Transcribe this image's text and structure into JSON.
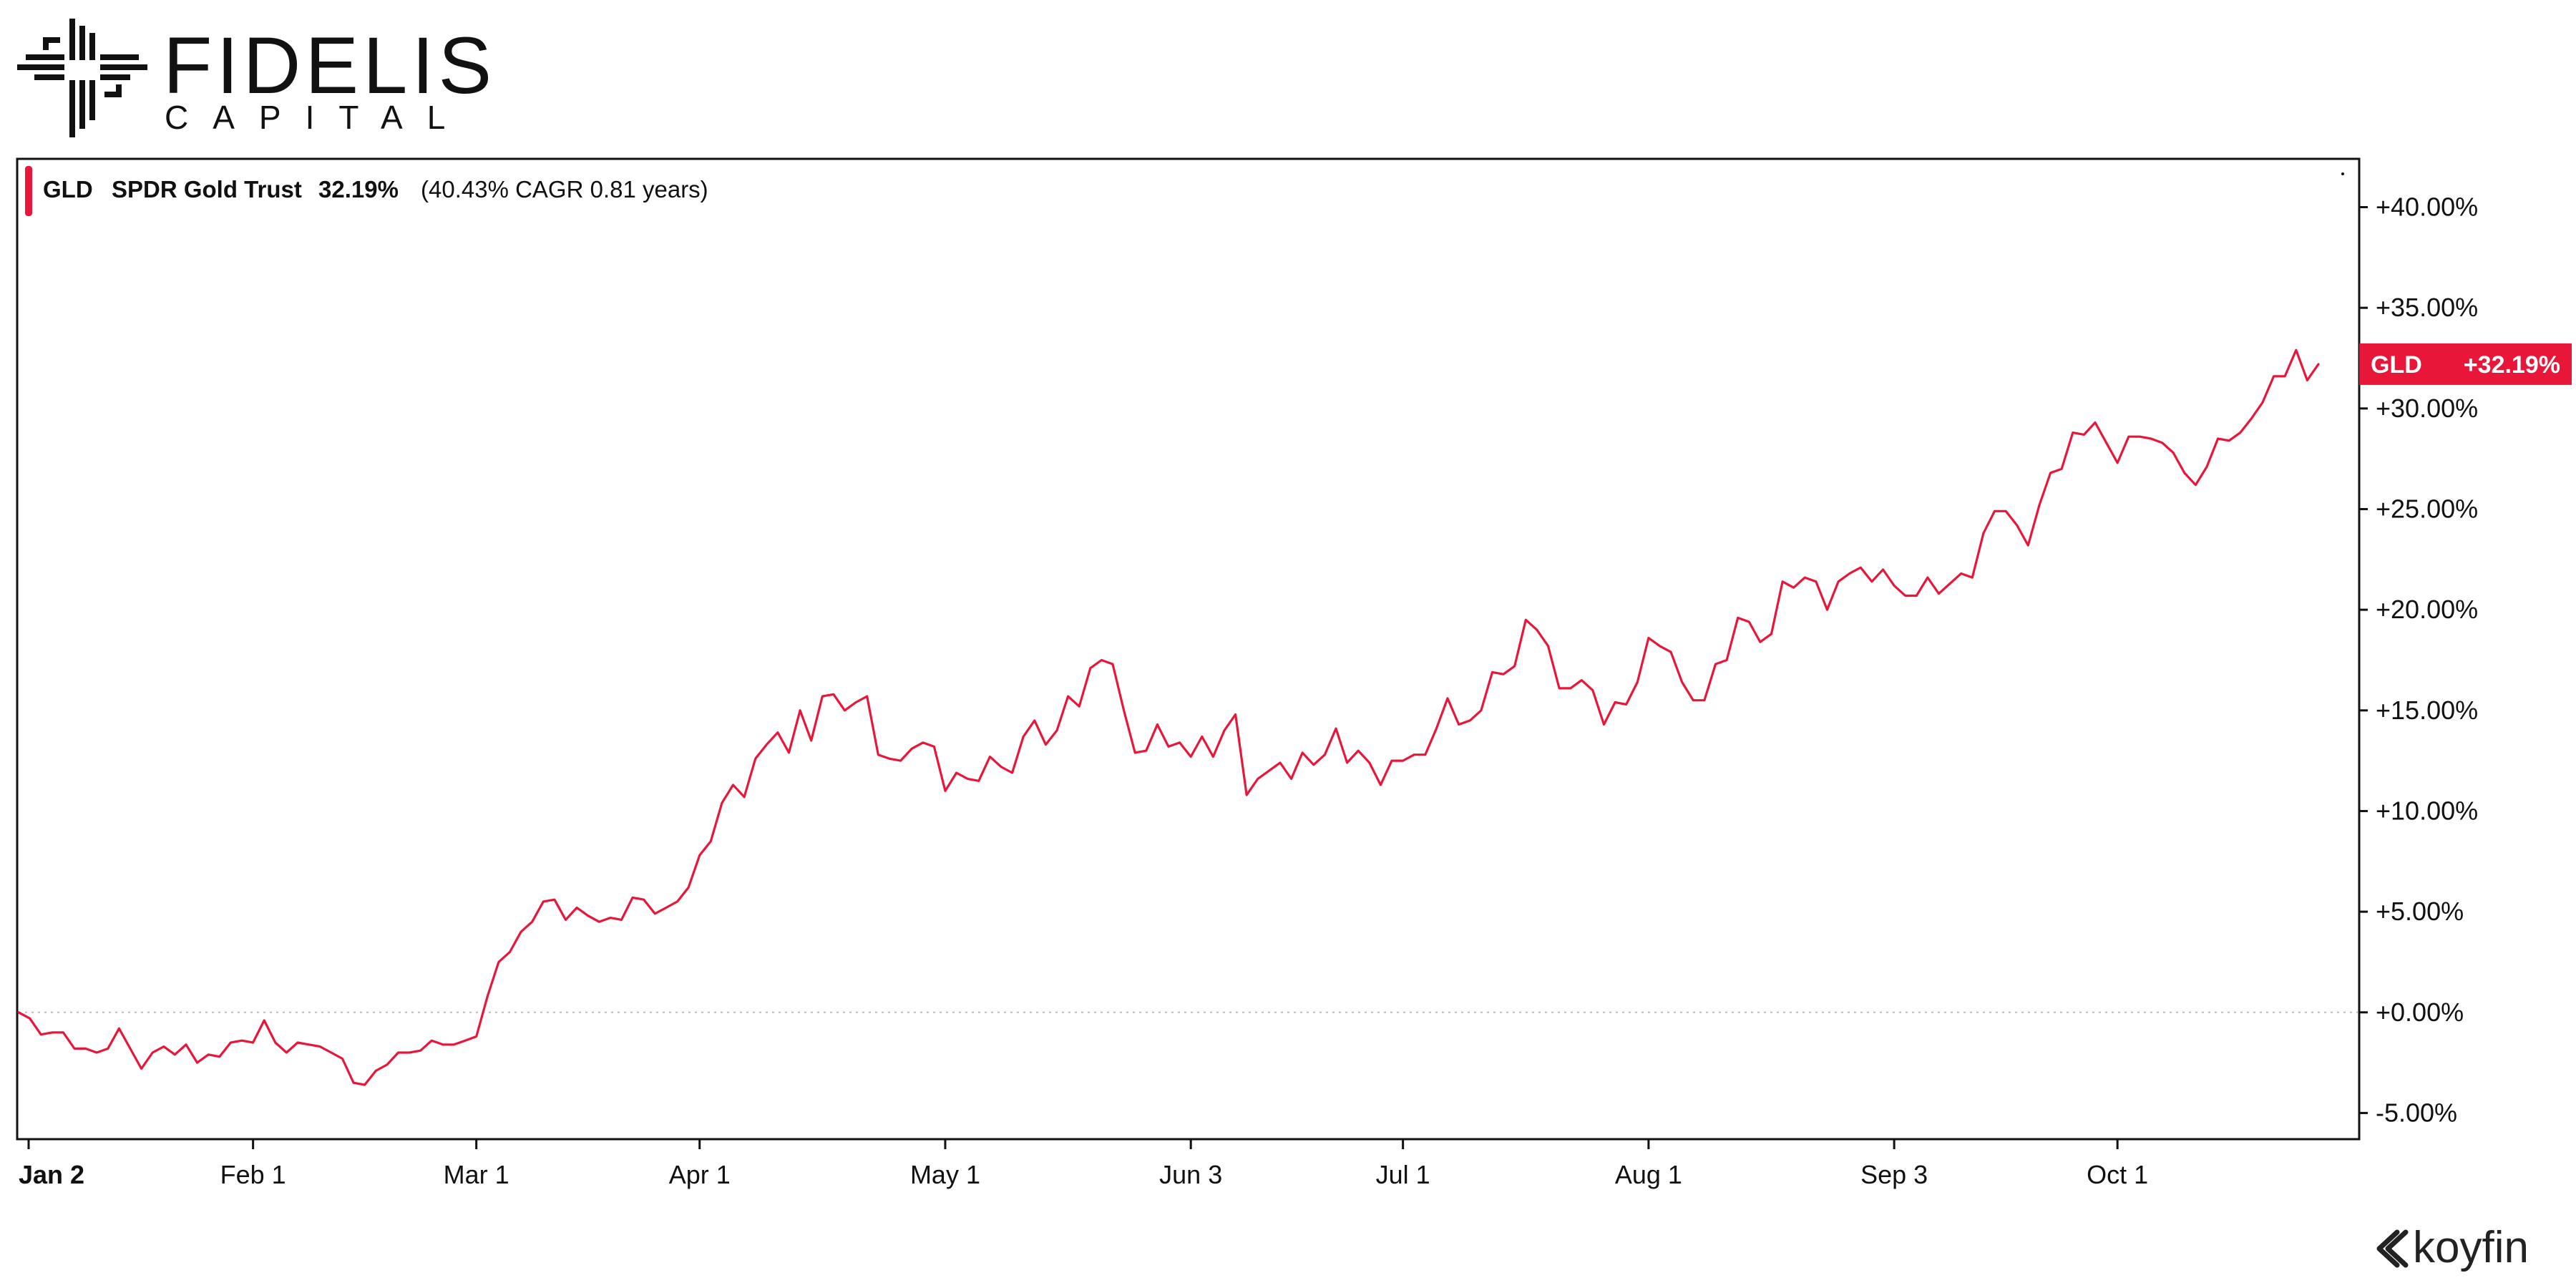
{
  "brand": {
    "name": "FIDELIS",
    "subtitle": "CAPITAL",
    "logo_icon": "fidelis-cross-logo"
  },
  "watermark": {
    "text": "koyfin",
    "icon": "koyfin-chevron-icon"
  },
  "legend": {
    "ticker": "GLD",
    "name": "SPDR Gold Trust",
    "return": "32.19%",
    "cagr": "(40.43% CAGR 0.81 years)",
    "color": "#e8173a"
  },
  "badge": {
    "ticker": "GLD",
    "value": "+32.19%",
    "color": "#e8173a"
  },
  "chart_data": {
    "type": "line",
    "title": "",
    "xlabel": "",
    "ylabel": "",
    "ylim": [
      -6.3,
      42.4
    ],
    "grid": false,
    "zero_line": "dotted",
    "y_ticks": [
      40,
      35,
      30,
      25,
      20,
      15,
      10,
      5,
      0,
      -5
    ],
    "y_tick_labels": [
      "+40.00%",
      "+35.00%",
      "+30.00%",
      "+25.00%",
      "+20.00%",
      "+15.00%",
      "+10.00%",
      "+5.00%",
      "+0.00%",
      "-5.00%"
    ],
    "x_ticks": [
      {
        "label": "Jan 2",
        "index": 0
      },
      {
        "label": "Feb 1",
        "index": 21
      },
      {
        "label": "Mar 1",
        "index": 41
      },
      {
        "label": "Apr 1",
        "index": 61
      },
      {
        "label": "May 1",
        "index": 83
      },
      {
        "label": "Jun 3",
        "index": 105
      },
      {
        "label": "Jul 1",
        "index": 124
      },
      {
        "label": "Aug 1",
        "index": 146
      },
      {
        "label": "Sep 3",
        "index": 168
      },
      {
        "label": "Oct 1",
        "index": 188
      }
    ],
    "series": [
      {
        "name": "GLD",
        "color": "#e8173a",
        "values": [
          0.0,
          -0.3,
          -1.1,
          -1.0,
          -1.0,
          -1.8,
          -1.8,
          -2.0,
          -1.8,
          -0.8,
          -1.8,
          -2.8,
          -2.0,
          -1.7,
          -2.1,
          -1.6,
          -2.5,
          -2.1,
          -2.2,
          -1.5,
          -1.4,
          -1.5,
          -0.4,
          -1.5,
          -2.0,
          -1.5,
          -1.6,
          -1.7,
          -2.0,
          -2.3,
          -3.5,
          -3.6,
          -2.9,
          -2.6,
          -2.0,
          -2.0,
          -1.9,
          -1.4,
          -1.6,
          -1.6,
          -1.4,
          -1.2,
          0.8,
          2.5,
          3.0,
          4.0,
          4.5,
          5.5,
          5.6,
          4.6,
          5.2,
          4.8,
          4.5,
          4.7,
          4.6,
          5.7,
          5.6,
          4.9,
          5.2,
          5.5,
          6.2,
          7.8,
          8.5,
          10.4,
          11.3,
          10.7,
          12.6,
          13.3,
          13.9,
          12.9,
          15.0,
          13.5,
          15.7,
          15.8,
          15.0,
          15.4,
          15.7,
          12.8,
          12.6,
          12.5,
          13.1,
          13.4,
          13.2,
          11.0,
          11.9,
          11.6,
          11.5,
          12.7,
          12.2,
          11.9,
          13.7,
          14.5,
          13.3,
          14.0,
          15.7,
          15.2,
          17.1,
          17.5,
          17.3,
          15.0,
          12.9,
          13.0,
          14.3,
          13.2,
          13.4,
          12.7,
          13.7,
          12.7,
          14.0,
          14.8,
          10.8,
          11.6,
          12.0,
          12.4,
          11.6,
          12.9,
          12.3,
          12.8,
          14.1,
          12.4,
          13.0,
          12.4,
          11.3,
          12.5,
          12.5,
          12.8,
          12.8,
          14.1,
          15.6,
          14.3,
          14.5,
          15.0,
          16.9,
          16.8,
          17.2,
          19.5,
          19.0,
          18.2,
          16.1,
          16.1,
          16.5,
          16.0,
          14.3,
          15.4,
          15.3,
          16.4,
          18.6,
          18.2,
          17.9,
          16.4,
          15.5,
          15.5,
          17.3,
          17.5,
          19.6,
          19.4,
          18.4,
          18.8,
          21.4,
          21.1,
          21.6,
          21.4,
          20.0,
          21.4,
          21.8,
          22.1,
          21.4,
          22.0,
          21.2,
          20.7,
          20.7,
          21.6,
          20.8,
          21.3,
          21.8,
          21.6,
          23.8,
          24.9,
          24.9,
          24.2,
          23.2,
          25.2,
          26.8,
          27.0,
          28.8,
          28.7,
          29.3,
          28.3,
          27.3,
          28.6,
          28.6,
          28.5,
          28.3,
          27.8,
          26.8,
          26.2,
          27.1,
          28.5,
          28.4,
          28.8,
          29.5,
          30.3,
          31.6,
          31.6,
          32.9,
          31.4,
          32.2
        ]
      }
    ]
  }
}
